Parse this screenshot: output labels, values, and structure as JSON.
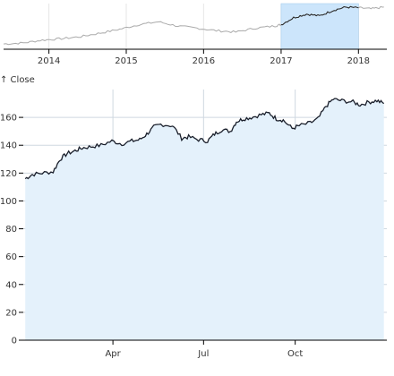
{
  "chart_data": [
    {
      "type": "line",
      "role": "overview",
      "xlim": [
        "2013-06-01",
        "2018-05-15"
      ],
      "x_ticks": [
        "2014",
        "2015",
        "2016",
        "2017",
        "2018"
      ],
      "brush_range": [
        "2017-01-01",
        "2018-01-01"
      ],
      "brush_color": "#cce5fb",
      "line_color": "#aaaaaa",
      "line_color_selected": "#222222",
      "series": [
        {
          "x": [
            "2013-06",
            "2013-09",
            "2013-12",
            "2014-03",
            "2014-06",
            "2014-09",
            "2014-12",
            "2015-03",
            "2015-06",
            "2015-09",
            "2015-12",
            "2016-03",
            "2016-06",
            "2016-09",
            "2016-12",
            "2017-01",
            "2017-03",
            "2017-05",
            "2017-07",
            "2017-09",
            "2017-11",
            "2018-01",
            "2018-03",
            "2018-05"
          ],
          "values": [
            65,
            68,
            76,
            80,
            86,
            96,
            107,
            120,
            128,
            116,
            110,
            103,
            99,
            110,
            116,
            120,
            140,
            150,
            145,
            160,
            170,
            168,
            165,
            170
          ]
        }
      ]
    },
    {
      "type": "area",
      "role": "focus",
      "ylabel": "↑ Close",
      "ylim": [
        0,
        180
      ],
      "y_ticks": [
        0,
        20,
        40,
        60,
        80,
        100,
        120,
        140,
        160
      ],
      "xlim": [
        "2017-01-01",
        "2018-01-01"
      ],
      "x_ticks": [
        "Apr",
        "Jul",
        "Oct"
      ],
      "x_tick_dates": [
        "2017-04-01",
        "2017-07-01",
        "2017-10-01"
      ],
      "grid": true,
      "fill_color": "#e4f1fb",
      "line_color": "#1a1f2b",
      "series": [
        {
          "x": [
            "2017-01-03",
            "2017-01-10",
            "2017-01-20",
            "2017-01-31",
            "2017-02-07",
            "2017-02-14",
            "2017-02-22",
            "2017-03-01",
            "2017-03-10",
            "2017-03-20",
            "2017-03-31",
            "2017-04-10",
            "2017-04-20",
            "2017-04-28",
            "2017-05-05",
            "2017-05-12",
            "2017-05-19",
            "2017-05-31",
            "2017-06-09",
            "2017-06-16",
            "2017-06-26",
            "2017-07-05",
            "2017-07-12",
            "2017-07-19",
            "2017-07-28",
            "2017-08-03",
            "2017-08-10",
            "2017-08-18",
            "2017-08-28",
            "2017-09-05",
            "2017-09-12",
            "2017-09-19",
            "2017-09-28",
            "2017-10-05",
            "2017-10-16",
            "2017-10-24",
            "2017-11-01",
            "2017-11-08",
            "2017-11-17",
            "2017-11-28",
            "2017-12-05",
            "2017-12-14",
            "2017-12-22",
            "2017-12-29"
          ],
          "values": [
            116,
            119,
            120,
            121,
            130,
            134,
            136,
            138,
            139,
            140,
            143,
            141,
            143,
            144,
            148,
            153,
            155,
            154,
            145,
            146,
            144,
            143,
            148,
            151,
            150,
            157,
            159,
            160,
            162,
            163,
            159,
            158,
            152,
            154,
            156,
            159,
            168,
            173,
            172,
            171,
            169,
            171,
            172,
            170
          ]
        }
      ]
    }
  ]
}
